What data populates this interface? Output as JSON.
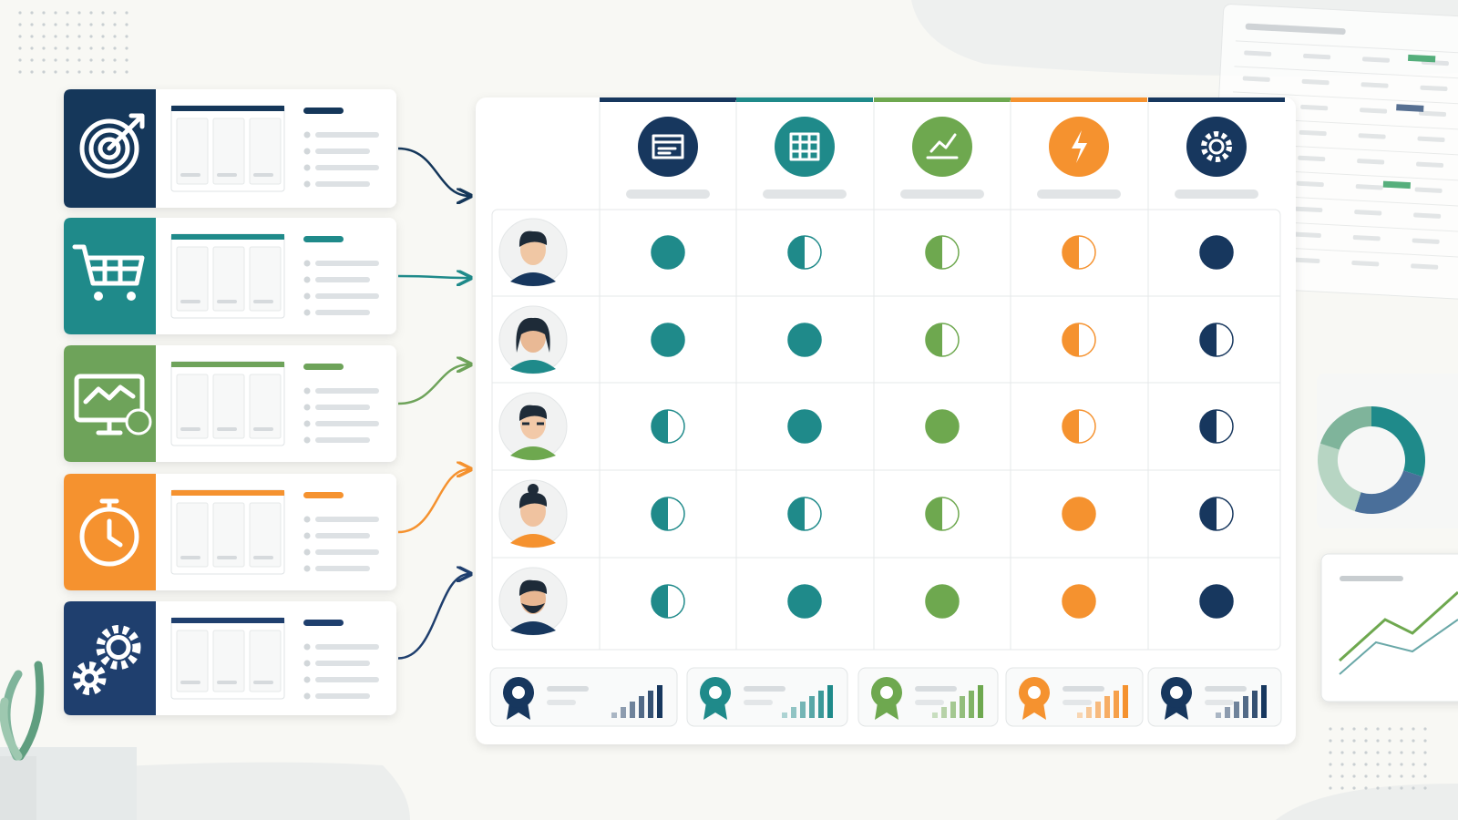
{
  "matrix": {
    "columns": [
      {
        "color": "#1f8a8a"
      },
      {
        "color": "#1f8a8a"
      },
      {
        "color": "#6ea84f"
      },
      {
        "color": "#f5922f"
      },
      {
        "color": "#17375e"
      }
    ],
    "rows": [
      [
        1,
        0.5,
        0.5,
        0.5,
        1
      ],
      [
        1,
        1,
        0.5,
        0.5,
        0.5
      ],
      [
        0.5,
        1,
        1,
        0.5,
        0.5
      ],
      [
        0.5,
        0.5,
        0.5,
        1,
        0.5
      ],
      [
        0.5,
        1,
        1,
        1,
        1
      ]
    ]
  }
}
